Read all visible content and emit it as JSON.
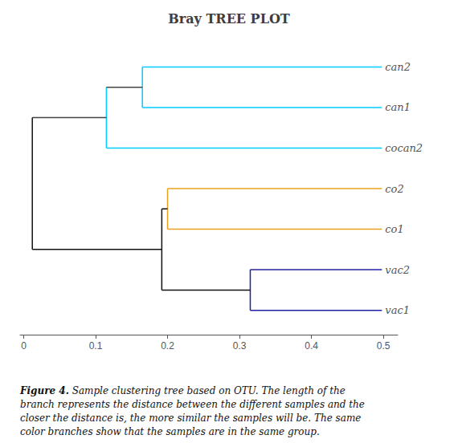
{
  "chart_data": {
    "type": "dendrogram",
    "title": "Bray TREE PLOT",
    "categories": [
      "can2",
      "can1",
      "cocan2",
      "co2",
      "co1",
      "vac2",
      "vac1"
    ],
    "y": [
      7,
      6,
      5,
      4,
      3,
      2,
      1
    ],
    "leaf_x": 0.498,
    "xlim": [
      -0.005,
      0.52
    ],
    "ylim": [
      0.4,
      7.7
    ],
    "xticks": [
      0,
      0.1,
      0.2,
      0.3,
      0.4,
      0.5
    ],
    "tick_labels": "x",
    "grid": false,
    "segments": [
      {
        "x": [
          0.165,
          0.498
        ],
        "y": [
          7,
          7
        ],
        "color": "#00CCFF"
      },
      {
        "x": [
          0.165,
          0.498
        ],
        "y": [
          6,
          6
        ],
        "color": "#00CCFF"
      },
      {
        "x": [
          0.165,
          0.165
        ],
        "y": [
          6,
          7
        ],
        "color": "#00CCFF"
      },
      {
        "x": [
          0.115,
          0.498
        ],
        "y": [
          5,
          5
        ],
        "color": "#00CCFF"
      },
      {
        "x": [
          0.115,
          0.115
        ],
        "y": [
          5,
          6.5
        ],
        "color": "#00CCFF"
      },
      {
        "x": [
          0.115,
          0.165
        ],
        "y": [
          6.5,
          6.5
        ],
        "color": "#444444"
      },
      {
        "x": [
          0.2,
          0.498
        ],
        "y": [
          4,
          4
        ],
        "color": "#E8A020"
      },
      {
        "x": [
          0.2,
          0.498
        ],
        "y": [
          3,
          3
        ],
        "color": "#E8A020"
      },
      {
        "x": [
          0.2,
          0.2
        ],
        "y": [
          3,
          4
        ],
        "color": "#E8A020"
      },
      {
        "x": [
          0.315,
          0.498
        ],
        "y": [
          2,
          2
        ],
        "color": "#2020A0"
      },
      {
        "x": [
          0.315,
          0.498
        ],
        "y": [
          1,
          1
        ],
        "color": "#2020A0"
      },
      {
        "x": [
          0.315,
          0.315
        ],
        "y": [
          1,
          2
        ],
        "color": "#2020A0"
      },
      {
        "x": [
          0.192,
          0.2
        ],
        "y": [
          3.5,
          3.5
        ],
        "color": "#111111"
      },
      {
        "x": [
          0.192,
          0.315
        ],
        "y": [
          1.5,
          1.5
        ],
        "color": "#111111"
      },
      {
        "x": [
          0.192,
          0.192
        ],
        "y": [
          1.5,
          3.5
        ],
        "color": "#111111"
      },
      {
        "x": [
          0.012,
          0.192
        ],
        "y": [
          2.5,
          2.5
        ],
        "color": "#111111"
      },
      {
        "x": [
          0.012,
          0.115
        ],
        "y": [
          5.75,
          5.75
        ],
        "color": "#444444"
      },
      {
        "x": [
          0.012,
          0.012
        ],
        "y": [
          2.5,
          5.75
        ],
        "color": "#111111"
      }
    ],
    "caption_prefix": "Figure 4.",
    "caption": " Sample clustering tree based on OTU. The length of the\nbranch represents the distance between the different samples and the\ncloser the distance is, the more similar the samples will be. The same\ncolor branches show that the samples are in the same group."
  }
}
